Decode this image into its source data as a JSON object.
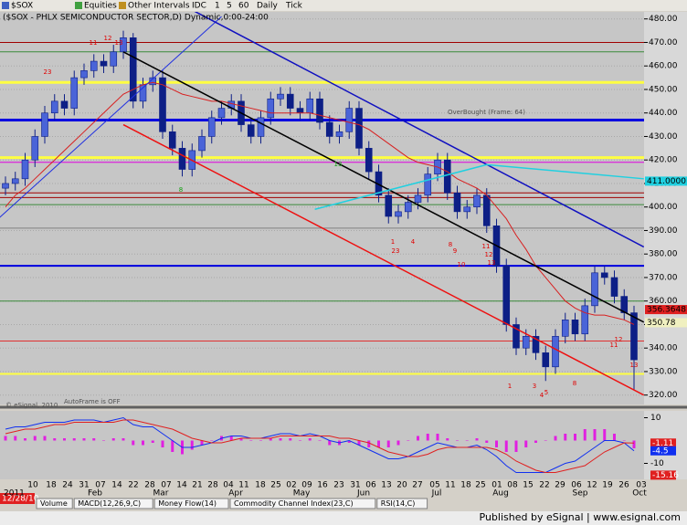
{
  "toolbar": [
    "$SOX",
    "Equities",
    "Other Intervals",
    "IDC",
    "1",
    "5",
    "60",
    "Daily",
    "Tick"
  ],
  "chart_data": [
    {
      "type": "candlestick",
      "title": "($SOX - PHLX SEMICONDUCTOR SECTOR,D) Dynamic,0:00-24:00",
      "up_color": "#4a64d8",
      "down_color": "#0d1f86",
      "series": {
        "open": [
          408,
          410,
          412,
          420,
          430,
          440,
          445,
          442,
          455,
          458,
          462,
          460,
          466,
          472,
          445,
          452,
          455,
          432,
          425,
          416,
          424,
          430,
          438,
          442,
          445,
          435,
          430,
          438,
          446,
          448,
          442,
          440,
          446,
          436,
          430,
          432,
          442,
          425,
          415,
          405,
          396,
          398,
          402,
          405,
          414,
          420,
          406,
          398,
          400,
          405,
          392,
          375,
          350,
          340,
          345,
          338,
          332,
          345,
          352,
          346,
          358,
          372,
          370,
          362,
          355
        ],
        "high": [
          413,
          415,
          423,
          433,
          443,
          448,
          448,
          458,
          461,
          465,
          465,
          469,
          475,
          474,
          455,
          458,
          458,
          435,
          428,
          427,
          433,
          441,
          445,
          448,
          448,
          438,
          441,
          449,
          451,
          451,
          445,
          449,
          449,
          439,
          435,
          445,
          445,
          428,
          418,
          408,
          401,
          405,
          408,
          417,
          423,
          423,
          409,
          403,
          408,
          408,
          395,
          378,
          353,
          348,
          348,
          341,
          348,
          355,
          355,
          361,
          375,
          375,
          373,
          365,
          358
        ],
        "low": [
          405,
          407,
          409,
          417,
          427,
          437,
          439,
          439,
          452,
          455,
          457,
          457,
          463,
          442,
          442,
          449,
          429,
          422,
          413,
          413,
          421,
          427,
          435,
          439,
          432,
          427,
          427,
          435,
          443,
          439,
          437,
          437,
          433,
          427,
          427,
          429,
          422,
          412,
          402,
          393,
          393,
          395,
          399,
          402,
          411,
          403,
          395,
          395,
          397,
          389,
          372,
          347,
          337,
          337,
          335,
          326,
          329,
          342,
          343,
          343,
          355,
          367,
          359,
          352,
          322
        ],
        "close": [
          410,
          412,
          420,
          430,
          440,
          445,
          442,
          455,
          458,
          462,
          460,
          466,
          472,
          445,
          452,
          455,
          432,
          425,
          416,
          424,
          430,
          438,
          442,
          445,
          435,
          430,
          438,
          446,
          448,
          442,
          440,
          446,
          436,
          430,
          432,
          442,
          425,
          415,
          405,
          396,
          398,
          402,
          405,
          414,
          420,
          406,
          398,
          400,
          405,
          392,
          375,
          350,
          340,
          345,
          338,
          332,
          345,
          352,
          346,
          358,
          372,
          370,
          362,
          355,
          335
        ]
      },
      "ma": {
        "color": "#d82020",
        "values": [
          400,
          405,
          408,
          412,
          416,
          420,
          424,
          428,
          432,
          436,
          440,
          444,
          448,
          450,
          452,
          453,
          452,
          450,
          448,
          447,
          446,
          445,
          445,
          444,
          443,
          442,
          441,
          440,
          440,
          440,
          440,
          440,
          439,
          438,
          437,
          436,
          435,
          433,
          430,
          427,
          424,
          421,
          419,
          418,
          417,
          415,
          412,
          410,
          408,
          405,
          400,
          395,
          388,
          382,
          375,
          370,
          365,
          360,
          357,
          355,
          354,
          354,
          353,
          352,
          350
        ]
      },
      "ylim": [
        316,
        483
      ],
      "yticks": [
        {
          "value": 480,
          "label": "480.00"
        },
        {
          "value": 470,
          "label": "470.00"
        },
        {
          "value": 460,
          "label": "460.00"
        },
        {
          "value": 450,
          "label": "450.00"
        },
        {
          "value": 440,
          "label": "440.00"
        },
        {
          "value": 430,
          "label": "430.00"
        },
        {
          "value": 420,
          "label": "420.00"
        },
        {
          "value": 410,
          "label": "410.00"
        },
        {
          "value": 400,
          "label": "400.00"
        },
        {
          "value": 390,
          "label": "390.00"
        },
        {
          "value": 380,
          "label": "380.00"
        },
        {
          "value": 370,
          "label": "370.00"
        },
        {
          "value": 360,
          "label": "360.00"
        },
        {
          "value": 350,
          "label": "350.00"
        },
        {
          "value": 340,
          "label": "340.00"
        },
        {
          "value": 330,
          "label": "330.00"
        },
        {
          "value": 320,
          "label": "320.00"
        }
      ],
      "grid": true,
      "levels": [
        {
          "value": 470,
          "color": "#a00000"
        },
        {
          "value": 466,
          "color": "#3a8a3a"
        },
        {
          "value": 453,
          "color": "#ffff40",
          "width": 3
        },
        {
          "value": 437,
          "color": "#0000e0",
          "width": 3
        },
        {
          "value": 421,
          "color": "#ffff40",
          "width": 3
        },
        {
          "value": 419,
          "color": "#e000e0"
        },
        {
          "value": 406,
          "color": "#a00000"
        },
        {
          "value": 404,
          "color": "#a00000"
        },
        {
          "value": 401,
          "color": "#3a8a3a"
        },
        {
          "value": 391,
          "color": "#808080"
        },
        {
          "value": 375,
          "color": "#0000e0",
          "width": 2
        },
        {
          "value": 360,
          "color": "#3a8a3a"
        },
        {
          "value": 343,
          "color": "#e03030"
        },
        {
          "value": 329,
          "color": "#ffff40",
          "width": 2
        }
      ],
      "trendlines": [
        {
          "color": "#2030e0",
          "width": 1,
          "points": [
            [
              -1,
              394
            ],
            [
              22,
              481
            ]
          ]
        },
        {
          "color": "#000000",
          "width": 1.5,
          "points": [
            [
              12,
              466
            ],
            [
              65,
              351
            ]
          ]
        },
        {
          "color": "#1010c0",
          "width": 1.5,
          "points": [
            [
              18,
              486
            ],
            [
              65,
              383
            ]
          ]
        },
        {
          "color": "#ee1010",
          "width": 1.5,
          "points": [
            [
              12,
              435
            ],
            [
              65,
              320
            ]
          ]
        },
        {
          "color": "#20d0e0",
          "width": 1.5,
          "points": [
            [
              31.5,
              399
            ],
            [
              49,
              418
            ],
            [
              65,
              412
            ]
          ]
        }
      ],
      "badges": [
        {
          "value": 411,
          "label": "411.0000",
          "color": "#20d0e0"
        },
        {
          "value": 356.3648,
          "label": "356.3648",
          "color": "#e02020"
        },
        {
          "value": 350.78,
          "label": "350.78",
          "color": "#f0f0c0"
        }
      ],
      "annotations": [
        "OverBought (Frame: 64)",
        "AutoFrame is OFF",
        "© eSignal, 2010"
      ],
      "counts": [
        {
          "text": "12",
          "color": "#e00000"
        },
        {
          "text": "13",
          "color": "#e00000"
        },
        {
          "text": "11",
          "color": "#e00000"
        },
        {
          "text": "23",
          "color": "#e00000"
        },
        {
          "text": "1",
          "color": "#e00000"
        },
        {
          "text": "23",
          "color": "#e00000"
        },
        {
          "text": "4",
          "color": "#e00000"
        },
        {
          "text": "8",
          "color": "#e00000"
        },
        {
          "text": "9",
          "color": "#e00000"
        },
        {
          "text": "10",
          "color": "#e00000"
        },
        {
          "text": "11",
          "color": "#e00000"
        },
        {
          "text": "12",
          "color": "#e00000"
        },
        {
          "text": "13",
          "color": "#e00000"
        },
        {
          "text": "1",
          "color": "#e00000"
        },
        {
          "text": "3",
          "color": "#e00000"
        },
        {
          "text": "4",
          "color": "#e00000"
        },
        {
          "text": "5",
          "color": "#e00000"
        },
        {
          "text": "8",
          "color": "#e00000"
        },
        {
          "text": "11",
          "color": "#e00000"
        },
        {
          "text": "12",
          "color": "#e00000"
        },
        {
          "text": "13",
          "color": "#e00000"
        },
        {
          "text": "8",
          "color": "#10a010"
        },
        {
          "text": "13",
          "color": "#10a010"
        }
      ]
    },
    {
      "type": "macd",
      "ylim": [
        -17,
        13
      ],
      "yticks": [
        10,
        -10
      ],
      "histogram": {
        "color": "#e020e0",
        "values": [
          2,
          2,
          1,
          2,
          2,
          1,
          1,
          1,
          1,
          1,
          0,
          1,
          1,
          -2,
          -2,
          -1,
          -3,
          -5,
          -6,
          -4,
          -2,
          0,
          2,
          2,
          1,
          0,
          0,
          1,
          1,
          1,
          0,
          1,
          0,
          -2,
          -2,
          -1,
          -2,
          -3,
          -3,
          -3,
          -2,
          0,
          2,
          3,
          3,
          1,
          0,
          0,
          1,
          -1,
          -3,
          -5,
          -5,
          -3,
          -1,
          0,
          2,
          3,
          3,
          5,
          5,
          5,
          3,
          0,
          -3.4
        ]
      },
      "series": [
        {
          "color": "#1030f0",
          "values": [
            5,
            6,
            6,
            7,
            8,
            8,
            8,
            9,
            9,
            9,
            8,
            9,
            10,
            7,
            6,
            6,
            3,
            0,
            -3,
            -3,
            -2,
            -1,
            1,
            2,
            2,
            1,
            1,
            2,
            3,
            3,
            2,
            3,
            2,
            0,
            -1,
            0,
            -2,
            -4,
            -6,
            -8,
            -8,
            -7,
            -5,
            -3,
            -1,
            -2,
            -3,
            -3,
            -2,
            -4,
            -7,
            -11,
            -14,
            -14,
            -14,
            -14,
            -12,
            -10,
            -9,
            -6,
            -3,
            0,
            0,
            -1,
            -4.5
          ]
        },
        {
          "color": "#e02020",
          "values": [
            3,
            4,
            5,
            5,
            6,
            7,
            7,
            8,
            8,
            8,
            8,
            8,
            9,
            9,
            8,
            7,
            6,
            5,
            3,
            1,
            0,
            -1,
            -1,
            0,
            1,
            1,
            1,
            1,
            2,
            2,
            2,
            2,
            2,
            2,
            1,
            1,
            0,
            -1,
            -3,
            -5,
            -6,
            -7,
            -7,
            -6,
            -4,
            -3,
            -3,
            -3,
            -3,
            -3,
            -4,
            -6,
            -9,
            -11,
            -13,
            -14,
            -14,
            -13,
            -12,
            -11,
            -8,
            -5,
            -3,
            -1,
            -1.11
          ]
        }
      ],
      "badges": [
        {
          "value": -1.11,
          "label": "-1.11",
          "color": "#e02020"
        },
        {
          "value": -4.5,
          "label": "-4.5",
          "color": "#1030f0"
        },
        {
          "value": -15.16,
          "label": "-15.16",
          "color": "#e02020"
        }
      ]
    }
  ],
  "date_labels": [
    "10",
    "18",
    "24",
    "31",
    "07",
    "14",
    "22",
    "28",
    "07",
    "14",
    "21",
    "28",
    "04",
    "11",
    "18",
    "25",
    "02",
    "09",
    "16",
    "23",
    "31",
    "06",
    "13",
    "20",
    "27",
    "05",
    "11",
    "18",
    "25",
    "01",
    "08",
    "15",
    "22",
    "29",
    "06",
    "12",
    "19",
    "26",
    "03"
  ],
  "month_labels": [
    "2011",
    "Feb",
    "Mar",
    "Apr",
    "May",
    "Jun",
    "Jul",
    "Aug",
    "Sep",
    "Oct"
  ],
  "tabs": [
    "Volume",
    "MACD(12,26,9,C)",
    "Money Flow(14)",
    "Commodity Channel Index(23,C)",
    "RSI(14,C)"
  ],
  "status_date": "12/28/10",
  "footer": "Published by eSignal | www.esignal.com"
}
